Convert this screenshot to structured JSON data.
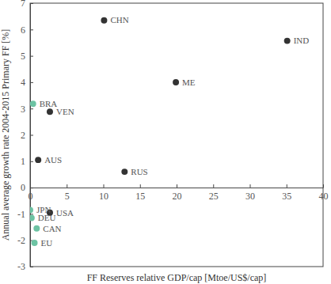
{
  "chart_data": {
    "type": "scatter",
    "x_label": "FF Reserves relative GDP/cap [Mtoe/US$/cap]",
    "y_label": "Annual average growth rate 2004-2015 Primary FF [%]",
    "labels": [
      "CHN",
      "IND",
      "ME",
      "BRA",
      "VEN",
      "AUS",
      "RUS",
      "JPN",
      "USA",
      "DEU",
      "CAN",
      "EU"
    ],
    "x": [
      10.1,
      35.1,
      19.9,
      0.4,
      2.7,
      1.1,
      12.9,
      0.0,
      2.7,
      0.2,
      0.9,
      0.6
    ],
    "values": [
      6.35,
      5.57,
      4.0,
      3.18,
      2.88,
      1.05,
      0.6,
      -0.85,
      -0.95,
      -1.15,
      -1.55,
      -2.1
    ],
    "colors": [
      "#333333",
      "#333333",
      "#333333",
      "#6cc3a3",
      "#333333",
      "#333333",
      "#333333",
      "#6cc3a3",
      "#333333",
      "#6cc3a3",
      "#6cc3a3",
      "#6cc3a3"
    ],
    "marker": "circle",
    "xlim": [
      0,
      40
    ],
    "xticks": [
      0,
      5,
      10,
      15,
      20,
      25,
      30,
      35,
      40
    ],
    "ylim": [
      -3,
      7
    ],
    "yticks": [
      -3,
      -2,
      -1,
      0,
      1,
      2,
      3,
      4,
      5,
      6,
      7
    ],
    "grid": false
  }
}
